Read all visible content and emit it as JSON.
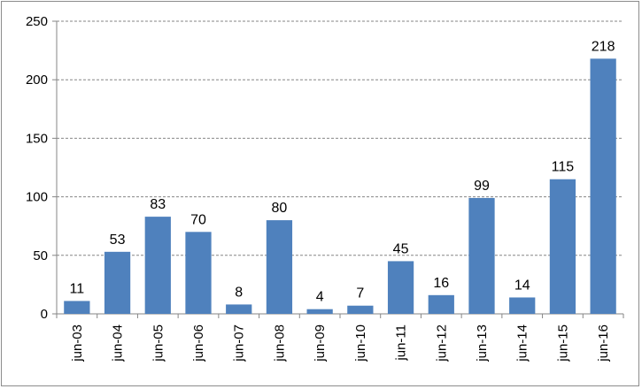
{
  "chart_data": {
    "type": "bar",
    "categories": [
      "jun-03",
      "jun-04",
      "jun-05",
      "jun-06",
      "jun-07",
      "jun-08",
      "jun-09",
      "jun-10",
      "jun-11",
      "jun-12",
      "jun-13",
      "jun-14",
      "jun-15",
      "jun-16"
    ],
    "values": [
      11,
      53,
      83,
      70,
      8,
      80,
      4,
      7,
      45,
      16,
      99,
      14,
      115,
      218
    ],
    "ylim": [
      0,
      250
    ],
    "yticks": [
      0,
      50,
      100,
      150,
      200,
      250
    ],
    "grid": true,
    "bar_color": "#4f81bd",
    "grid_color": "#868686",
    "data_labels": true
  }
}
